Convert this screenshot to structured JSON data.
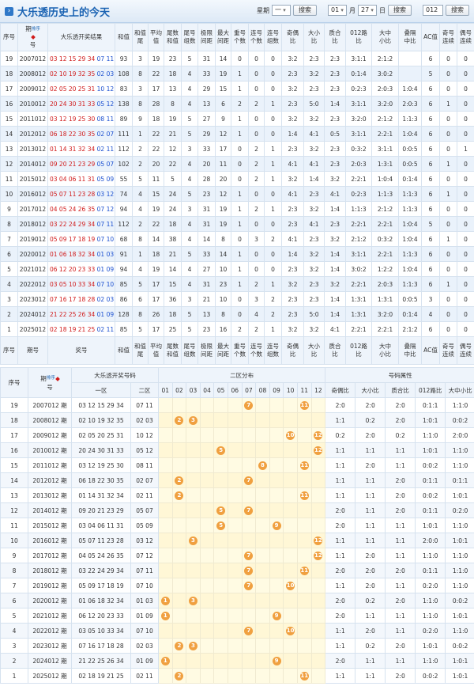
{
  "header": {
    "title": "大乐透历史上的今天",
    "week_label": "星期",
    "week_value": "一",
    "search": "搜索",
    "month": "01",
    "month_unit": "月",
    "day": "27",
    "day_unit": "日",
    "search2": "搜索",
    "code": "012",
    "search3": "搜索"
  },
  "table1": {
    "sort_label": "排序",
    "columns": [
      {
        "top": "序号"
      },
      {
        "top": "期",
        "bottom": "号"
      },
      {
        "top": "大乐透开奖结果"
      },
      {
        "top": "和值"
      },
      {
        "top": "和值",
        "bottom": "尾"
      },
      {
        "top": "平均",
        "bottom": "值"
      },
      {
        "top": "尾数",
        "bottom": "和值"
      },
      {
        "top": "尾号",
        "bottom": "组数"
      },
      {
        "top": "极限",
        "bottom": "间距"
      },
      {
        "top": "最大",
        "bottom": "间距"
      },
      {
        "top": "重号",
        "bottom": "个数"
      },
      {
        "top": "连号",
        "bottom": "个数"
      },
      {
        "top": "连号",
        "bottom": "组数"
      },
      {
        "top": "奇偶",
        "bottom": "比"
      },
      {
        "top": "大小",
        "bottom": "比"
      },
      {
        "top": "质合",
        "bottom": "比"
      },
      {
        "top": "012路",
        "bottom": "比"
      },
      {
        "top": "大中",
        "bottom": "小比"
      },
      {
        "top": "叠隔",
        "bottom": "中比"
      },
      {
        "top": "AC值"
      },
      {
        "top": "奇号",
        "bottom": "连续"
      },
      {
        "top": "偶号",
        "bottom": "连续"
      }
    ],
    "footer_columns": [
      {
        "top": "序号"
      },
      {
        "top": "期号"
      },
      {
        "top": "奖号"
      },
      {
        "top": "和值"
      },
      {
        "top": "和值",
        "bottom": "尾"
      },
      {
        "top": "平均",
        "bottom": "值"
      },
      {
        "top": "尾数",
        "bottom": "和值"
      },
      {
        "top": "尾号",
        "bottom": "组数"
      },
      {
        "top": "极限",
        "bottom": "间距"
      },
      {
        "top": "最大",
        "bottom": "间距"
      },
      {
        "top": "重号",
        "bottom": "个数"
      },
      {
        "top": "连号",
        "bottom": "个数"
      },
      {
        "top": "连号",
        "bottom": "组数"
      },
      {
        "top": "奇偶",
        "bottom": "比"
      },
      {
        "top": "大小",
        "bottom": "比"
      },
      {
        "top": "质合",
        "bottom": "比"
      },
      {
        "top": "012路",
        "bottom": "比"
      },
      {
        "top": "大中",
        "bottom": "小比"
      },
      {
        "top": "叠隔",
        "bottom": "中比"
      },
      {
        "top": "AC值"
      },
      {
        "top": "奇号",
        "bottom": "连续"
      },
      {
        "top": "偶号",
        "bottom": "连续"
      }
    ],
    "rows": [
      [
        19,
        "2007012",
        "03 12 15 29 34",
        "07 11",
        93,
        3,
        19,
        23,
        5,
        31,
        14,
        0,
        0,
        0,
        "3:2",
        "2:3",
        "2:3",
        "3:1:1",
        "2:1:2",
        null,
        6,
        0,
        0
      ],
      [
        18,
        "2008012",
        "02 10 19 32 35",
        "02 03",
        108,
        8,
        22,
        18,
        4,
        33,
        19,
        1,
        0,
        0,
        "2:3",
        "3:2",
        "2:3",
        "0:1:4",
        "3:0:2",
        null,
        5,
        0,
        0
      ],
      [
        17,
        "2009012",
        "02 05 20 25 31",
        "10 12",
        83,
        3,
        17,
        13,
        4,
        29,
        15,
        1,
        0,
        0,
        "3:2",
        "2:3",
        "2:3",
        "0:2:3",
        "2:0:3",
        "1:0:4",
        6,
        0,
        0
      ],
      [
        16,
        "2010012",
        "20 24 30 31 33",
        "05 12",
        138,
        8,
        28,
        8,
        4,
        13,
        6,
        2,
        2,
        1,
        "2:3",
        "5:0",
        "1:4",
        "3:1:1",
        "3:2:0",
        "2:0:3",
        6,
        1,
        0
      ],
      [
        15,
        "2011012",
        "03 12 19 25 30",
        "08 11",
        89,
        9,
        18,
        19,
        5,
        27,
        9,
        1,
        0,
        0,
        "3:2",
        "3:2",
        "2:3",
        "3:2:0",
        "2:1:2",
        "1:1:3",
        6,
        0,
        0
      ],
      [
        14,
        "2012012",
        "06 18 22 30 35",
        "02 07",
        111,
        1,
        22,
        21,
        5,
        29,
        12,
        1,
        0,
        0,
        "1:4",
        "4:1",
        "0:5",
        "3:1:1",
        "2:2:1",
        "1:0:4",
        6,
        0,
        0
      ],
      [
        13,
        "2013012",
        "01 14 31 32 34",
        "02 11",
        112,
        2,
        22,
        12,
        3,
        33,
        17,
        0,
        2,
        1,
        "2:3",
        "3:2",
        "2:3",
        "0:3:2",
        "3:1:1",
        "0:0:5",
        6,
        0,
        1
      ],
      [
        12,
        "2014012",
        "09 20 21 23 29",
        "05 07",
        102,
        2,
        20,
        22,
        4,
        20,
        11,
        0,
        2,
        1,
        "4:1",
        "4:1",
        "2:3",
        "2:0:3",
        "1:3:1",
        "0:0:5",
        6,
        1,
        0
      ],
      [
        11,
        "2015012",
        "03 04 06 11 31",
        "05 09",
        55,
        5,
        11,
        5,
        4,
        28,
        20,
        0,
        2,
        1,
        "3:2",
        "1:4",
        "3:2",
        "2:2:1",
        "1:0:4",
        "0:1:4",
        6,
        0,
        0
      ],
      [
        10,
        "2016012",
        "05 07 11 23 28",
        "03 12",
        74,
        4,
        15,
        24,
        5,
        23,
        12,
        1,
        0,
        0,
        "4:1",
        "2:3",
        "4:1",
        "0:2:3",
        "1:1:3",
        "1:1:3",
        6,
        1,
        0
      ],
      [
        9,
        "2017012",
        "04 05 24 26 35",
        "07 12",
        94,
        4,
        19,
        24,
        3,
        31,
        19,
        1,
        2,
        1,
        "2:3",
        "3:2",
        "1:4",
        "1:1:3",
        "2:1:2",
        "1:1:3",
        6,
        0,
        0
      ],
      [
        8,
        "2018012",
        "03 22 24 29 34",
        "07 11",
        112,
        2,
        22,
        18,
        4,
        31,
        19,
        1,
        0,
        0,
        "2:3",
        "4:1",
        "2:3",
        "2:2:1",
        "2:2:1",
        "1:0:4",
        5,
        0,
        0
      ],
      [
        7,
        "2019012",
        "05 09 17 18 19",
        "07 10",
        68,
        8,
        14,
        38,
        4,
        14,
        8,
        0,
        3,
        2,
        "4:1",
        "2:3",
        "3:2",
        "2:1:2",
        "0:3:2",
        "1:0:4",
        6,
        1,
        0
      ],
      [
        6,
        "2020012",
        "01 06 18 32 34",
        "01 03",
        91,
        1,
        18,
        21,
        5,
        33,
        14,
        1,
        0,
        0,
        "1:4",
        "3:2",
        "1:4",
        "3:1:1",
        "2:2:1",
        "1:1:3",
        6,
        0,
        0
      ],
      [
        5,
        "2021012",
        "06 12 20 23 33",
        "01 09",
        94,
        4,
        19,
        14,
        4,
        27,
        10,
        1,
        0,
        0,
        "2:3",
        "3:2",
        "1:4",
        "3:0:2",
        "1:2:2",
        "1:0:4",
        6,
        0,
        0
      ],
      [
        4,
        "2022012",
        "03 05 10 33 34",
        "07 10",
        85,
        5,
        17,
        15,
        4,
        31,
        23,
        1,
        2,
        1,
        "3:2",
        "2:3",
        "3:2",
        "2:2:1",
        "2:0:3",
        "1:1:3",
        6,
        1,
        0
      ],
      [
        3,
        "2023012",
        "07 16 17 18 28",
        "02 03",
        86,
        6,
        17,
        36,
        3,
        21,
        10,
        0,
        3,
        2,
        "2:3",
        "2:3",
        "1:4",
        "1:3:1",
        "1:3:1",
        "0:0:5",
        3,
        0,
        0
      ],
      [
        2,
        "2024012",
        "21 22 25 26 34",
        "01 09",
        128,
        8,
        26,
        18,
        5,
        13,
        8,
        0,
        4,
        2,
        "2:3",
        "5:0",
        "1:4",
        "1:3:1",
        "3:2:0",
        "0:1:4",
        4,
        0,
        0
      ],
      [
        1,
        "2025012",
        "02 18 19 21 25",
        "02 11",
        85,
        5,
        17,
        25,
        5,
        23,
        16,
        2,
        2,
        1,
        "3:2",
        "3:2",
        "4:1",
        "2:2:1",
        "2:2:1",
        "2:1:2",
        6,
        0,
        0
      ]
    ]
  },
  "table2": {
    "header": {
      "no": "序号",
      "issue_top": "期",
      "issue_bottom": "号",
      "sort_label": "排序",
      "numbers": "大乐透开奖号码",
      "zone1": "一区",
      "zone2": "二区",
      "dist": "二区分布",
      "attrs": "号码属性",
      "dist_cols": [
        "01",
        "02",
        "03",
        "04",
        "05",
        "06",
        "07",
        "08",
        "09",
        "10",
        "11",
        "12"
      ],
      "attr_cols": [
        "奇偶比",
        "大小比",
        "质合比",
        "012路比",
        "大中小比"
      ]
    },
    "rows": [
      {
        "no": 19,
        "issue": "2007012 期",
        "zone1": "03 12 15 29 34",
        "zone2": "07 11",
        "dist": [
          7,
          11
        ],
        "attrs": [
          "2:0",
          "2:0",
          "2:0",
          "0:1:1",
          "1:1:0"
        ]
      },
      {
        "no": 18,
        "issue": "2008012 期",
        "zone1": "02 10 19 32 35",
        "zone2": "02 03",
        "dist": [
          2,
          3
        ],
        "attrs": [
          "1:1",
          "0:2",
          "2:0",
          "1:0:1",
          "0:0:2"
        ]
      },
      {
        "no": 17,
        "issue": "2009012 期",
        "zone1": "02 05 20 25 31",
        "zone2": "10 12",
        "dist": [
          10,
          12
        ],
        "attrs": [
          "0:2",
          "2:0",
          "0:2",
          "1:1:0",
          "2:0:0"
        ]
      },
      {
        "no": 16,
        "issue": "2010012 期",
        "zone1": "20 24 30 31 33",
        "zone2": "05 12",
        "dist": [
          5,
          12
        ],
        "attrs": [
          "1:1",
          "1:1",
          "1:1",
          "1:0:1",
          "1:1:0"
        ]
      },
      {
        "no": 15,
        "issue": "2011012 期",
        "zone1": "03 12 19 25 30",
        "zone2": "08 11",
        "dist": [
          8,
          11
        ],
        "attrs": [
          "1:1",
          "2:0",
          "1:1",
          "0:0:2",
          "1:1:0"
        ]
      },
      {
        "no": 14,
        "issue": "2012012 期",
        "zone1": "06 18 22 30 35",
        "zone2": "02 07",
        "dist": [
          2,
          7
        ],
        "attrs": [
          "1:1",
          "1:1",
          "2:0",
          "0:1:1",
          "0:1:1"
        ]
      },
      {
        "no": 13,
        "issue": "2013012 期",
        "zone1": "01 14 31 32 34",
        "zone2": "02 11",
        "dist": [
          2,
          11
        ],
        "attrs": [
          "1:1",
          "1:1",
          "2:0",
          "0:0:2",
          "1:0:1"
        ]
      },
      {
        "no": 12,
        "issue": "2014012 期",
        "zone1": "09 20 21 23 29",
        "zone2": "05 07",
        "dist": [
          5,
          7
        ],
        "attrs": [
          "2:0",
          "1:1",
          "2:0",
          "0:1:1",
          "0:2:0"
        ]
      },
      {
        "no": 11,
        "issue": "2015012 期",
        "zone1": "03 04 06 11 31",
        "zone2": "05 09",
        "dist": [
          5,
          9
        ],
        "attrs": [
          "2:0",
          "1:1",
          "1:1",
          "1:0:1",
          "1:1:0"
        ]
      },
      {
        "no": 10,
        "issue": "2016012 期",
        "zone1": "05 07 11 23 28",
        "zone2": "03 12",
        "dist": [
          3,
          12
        ],
        "attrs": [
          "1:1",
          "1:1",
          "1:1",
          "2:0:0",
          "1:0:1"
        ]
      },
      {
        "no": 9,
        "issue": "2017012 期",
        "zone1": "04 05 24 26 35",
        "zone2": "07 12",
        "dist": [
          7,
          12
        ],
        "attrs": [
          "1:1",
          "2:0",
          "1:1",
          "1:1:0",
          "1:1:0"
        ]
      },
      {
        "no": 8,
        "issue": "2018012 期",
        "zone1": "03 22 24 29 34",
        "zone2": "07 11",
        "dist": [
          7,
          11
        ],
        "attrs": [
          "2:0",
          "2:0",
          "2:0",
          "0:1:1",
          "1:1:0"
        ]
      },
      {
        "no": 7,
        "issue": "2019012 期",
        "zone1": "05 09 17 18 19",
        "zone2": "07 10",
        "dist": [
          7,
          10
        ],
        "attrs": [
          "1:1",
          "2:0",
          "1:1",
          "0:2:0",
          "1:1:0"
        ]
      },
      {
        "no": 6,
        "issue": "2020012 期",
        "zone1": "01 06 18 32 34",
        "zone2": "01 03",
        "dist": [
          1,
          3
        ],
        "attrs": [
          "2:0",
          "0:2",
          "2:0",
          "1:1:0",
          "0:0:2"
        ]
      },
      {
        "no": 5,
        "issue": "2021012 期",
        "zone1": "06 12 20 23 33",
        "zone2": "01 09",
        "dist": [
          1,
          9
        ],
        "attrs": [
          "2:0",
          "1:1",
          "1:1",
          "1:1:0",
          "1:0:1"
        ]
      },
      {
        "no": 4,
        "issue": "2022012 期",
        "zone1": "03 05 10 33 34",
        "zone2": "07 10",
        "dist": [
          7,
          10
        ],
        "attrs": [
          "1:1",
          "2:0",
          "1:1",
          "0:2:0",
          "1:1:0"
        ]
      },
      {
        "no": 3,
        "issue": "2023012 期",
        "zone1": "07 16 17 18 28",
        "zone2": "02 03",
        "dist": [
          2,
          3
        ],
        "attrs": [
          "1:1",
          "0:2",
          "2:0",
          "1:0:1",
          "0:0:2"
        ]
      },
      {
        "no": 2,
        "issue": "2024012 期",
        "zone1": "21 22 25 26 34",
        "zone2": "01 09",
        "dist": [
          1,
          9
        ],
        "attrs": [
          "2:0",
          "1:1",
          "1:1",
          "1:1:0",
          "1:0:1"
        ]
      },
      {
        "no": 1,
        "issue": "2025012 期",
        "zone1": "02 18 19 21 25",
        "zone2": "02 11",
        "dist": [
          2,
          11
        ],
        "attrs": [
          "1:1",
          "1:1",
          "2:0",
          "0:0:2",
          "1:0:1"
        ]
      }
    ]
  }
}
